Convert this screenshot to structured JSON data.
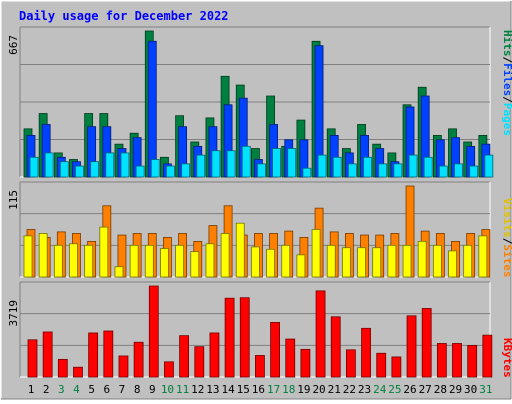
{
  "title": "Daily usage for December 2022",
  "colors": {
    "background": "#c0c0c0",
    "plot": "#c0c0c0",
    "title": "#0000ff",
    "hits": "#008040",
    "files": "#0040ff",
    "pages": "#00e0ff",
    "visits": "#ffff00",
    "sites": "#ff8000",
    "kbytes": "#ff0000",
    "weekend": "#008040",
    "weekday": "#000000"
  },
  "legend": {
    "pages": "Pages",
    "files": "Files",
    "hits": "Hits",
    "sites": "Sites",
    "visits": "Visits",
    "kbytes": "KBytes",
    "sep": "/"
  },
  "chart_data": [
    {
      "type": "bar",
      "name": "hits-files-pages",
      "ymax_label": "667",
      "ylim": [
        0,
        667
      ],
      "categories": [
        "1",
        "2",
        "3",
        "4",
        "5",
        "6",
        "7",
        "8",
        "9",
        "10",
        "11",
        "12",
        "13",
        "14",
        "15",
        "16",
        "17",
        "18",
        "19",
        "20",
        "21",
        "22",
        "23",
        "24",
        "25",
        "26",
        "27",
        "28",
        "29",
        "30",
        "31"
      ],
      "series": [
        {
          "name": "Hits",
          "values": [
            220,
            290,
            110,
            80,
            290,
            290,
            150,
            200,
            667,
            90,
            280,
            160,
            270,
            460,
            420,
            130,
            370,
            140,
            260,
            620,
            220,
            130,
            240,
            150,
            110,
            330,
            410,
            190,
            220,
            160,
            190
          ]
        },
        {
          "name": "Files",
          "values": [
            190,
            240,
            90,
            70,
            230,
            230,
            130,
            180,
            620,
            60,
            230,
            140,
            230,
            330,
            360,
            80,
            240,
            170,
            170,
            600,
            190,
            110,
            190,
            130,
            70,
            320,
            370,
            170,
            180,
            140,
            150
          ]
        },
        {
          "name": "Pages",
          "values": [
            90,
            110,
            70,
            50,
            70,
            110,
            110,
            50,
            80,
            50,
            60,
            100,
            120,
            120,
            140,
            60,
            130,
            130,
            40,
            100,
            90,
            60,
            90,
            60,
            60,
            100,
            90,
            50,
            60,
            50,
            100
          ]
        }
      ]
    },
    {
      "type": "bar",
      "name": "sites-visits",
      "ymax_label": "115",
      "ylim": [
        0,
        115
      ],
      "categories": [
        "1",
        "2",
        "3",
        "4",
        "5",
        "6",
        "7",
        "8",
        "9",
        "10",
        "11",
        "12",
        "13",
        "14",
        "15",
        "16",
        "17",
        "18",
        "19",
        "20",
        "21",
        "22",
        "23",
        "24",
        "25",
        "26",
        "27",
        "28",
        "29",
        "30",
        "31"
      ],
      "series": [
        {
          "name": "Sites",
          "values": [
            60,
            50,
            57,
            55,
            45,
            90,
            53,
            55,
            55,
            50,
            55,
            45,
            65,
            90,
            53,
            55,
            55,
            58,
            50,
            87,
            57,
            55,
            53,
            53,
            55,
            115,
            58,
            55,
            45,
            55,
            60
          ]
        },
        {
          "name": "Visits",
          "values": [
            52,
            55,
            40,
            42,
            40,
            63,
            13,
            40,
            40,
            36,
            40,
            32,
            42,
            55,
            68,
            38,
            35,
            40,
            28,
            60,
            40,
            37,
            37,
            37,
            40,
            40,
            45,
            40,
            33,
            40,
            52
          ]
        }
      ]
    },
    {
      "type": "bar",
      "name": "kbytes",
      "ymax_label": "3719",
      "ylim": [
        0,
        3719
      ],
      "categories": [
        "1",
        "2",
        "3",
        "4",
        "5",
        "6",
        "7",
        "8",
        "9",
        "10",
        "11",
        "12",
        "13",
        "14",
        "15",
        "16",
        "17",
        "18",
        "19",
        "20",
        "21",
        "22",
        "23",
        "24",
        "25",
        "26",
        "27",
        "28",
        "29",
        "30",
        "31"
      ],
      "series": [
        {
          "name": "KBytes",
          "values": [
            1520,
            1840,
            720,
            400,
            1800,
            1880,
            860,
            1420,
            3719,
            620,
            1690,
            1240,
            1800,
            3220,
            3240,
            880,
            2230,
            1550,
            1130,
            3520,
            2460,
            1110,
            1990,
            970,
            820,
            2500,
            2800,
            1370,
            1370,
            1290,
            1710
          ]
        }
      ]
    }
  ]
}
